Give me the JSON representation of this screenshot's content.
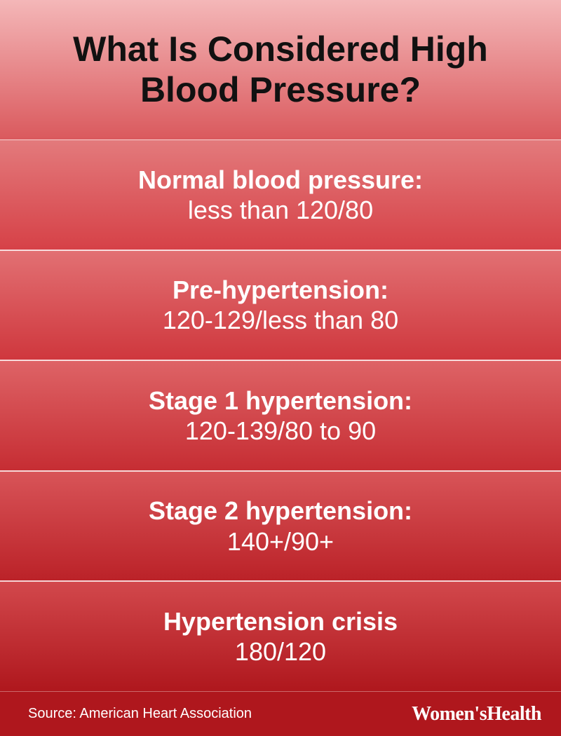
{
  "title": "What Is Considered High Blood Pressure?",
  "title_color": "#111111",
  "title_fontsize": 50,
  "divider_color": "rgba(255,255,255,0.75)",
  "label_fontsize": 36,
  "value_fontsize": 36,
  "text_color": "#ffffff",
  "rows": [
    {
      "label": "Normal blood pressure:",
      "value": "less than 120/80",
      "bg_top": "#e37a7c",
      "bg_bottom": "#d64147"
    },
    {
      "label": "Pre-hypertension:",
      "value": "120-129/less than 80",
      "bg_top": "#e27073",
      "bg_bottom": "#cf373d"
    },
    {
      "label": "Stage 1 hypertension:",
      "value": "120-139/80 to 90",
      "bg_top": "#de6366",
      "bg_bottom": "#c62d33"
    },
    {
      "label": "Stage 2 hypertension:",
      "value": "140+/90+",
      "bg_top": "#d85458",
      "bg_bottom": "#bb2228"
    },
    {
      "label": "Hypertension crisis",
      "value": "180/120",
      "bg_top": "#d2484c",
      "bg_bottom": "#af171d"
    }
  ],
  "header_bg_top": "#f4b7b8",
  "header_bg_bottom": "#da595d",
  "footer_bg": "#af171d",
  "source": "Source: American Heart Association",
  "brand": "Women'sHealth"
}
